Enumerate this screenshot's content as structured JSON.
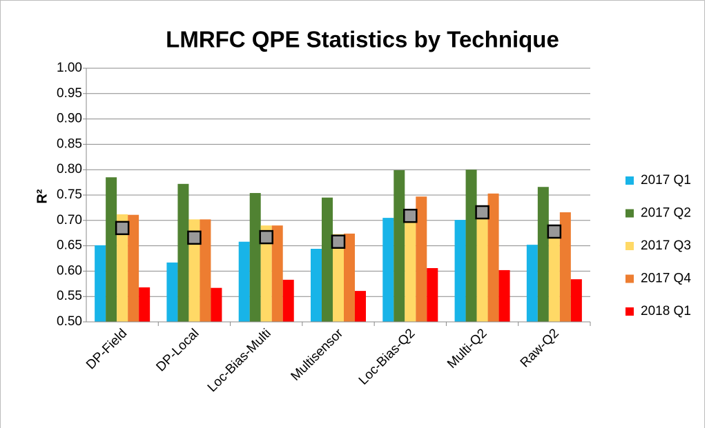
{
  "chart_data": {
    "type": "bar",
    "title": "LMRFC QPE Statistics by Technique",
    "y_label": "R²",
    "categories": [
      "DP-Field",
      "DP-Local",
      "Loc-Bias-Multi",
      "Multisensor",
      "Loc-Bias-Q2",
      "Multi-Q2",
      "Raw-Q2"
    ],
    "series": [
      {
        "name": "2017 Q1",
        "color": "#18b4e8",
        "values": [
          0.651,
          0.617,
          0.658,
          0.644,
          0.705,
          0.701,
          0.652
        ]
      },
      {
        "name": "2017 Q2",
        "color": "#508232",
        "values": [
          0.785,
          0.772,
          0.754,
          0.745,
          0.799,
          0.8,
          0.766
        ]
      },
      {
        "name": "2017 Q3",
        "color": "#ffd966",
        "values": [
          0.712,
          0.702,
          0.69,
          0.673,
          0.71,
          0.71,
          0.68
        ]
      },
      {
        "name": "2017 Q4",
        "color": "#ed7d31",
        "values": [
          0.711,
          0.702,
          0.69,
          0.674,
          0.747,
          0.753,
          0.716
        ]
      },
      {
        "name": "2018 Q1",
        "color": "#ff0000",
        "values": [
          0.568,
          0.567,
          0.583,
          0.561,
          0.606,
          0.602,
          0.584
        ]
      }
    ],
    "markers": {
      "color": "#999999",
      "values": [
        0.685,
        0.666,
        0.667,
        0.658,
        0.709,
        0.716,
        0.678
      ]
    },
    "ylim": [
      0.5,
      1.0
    ],
    "yticks": [
      {
        "value": 0.5,
        "label": "0.50"
      },
      {
        "value": 0.55,
        "label": "0.55"
      },
      {
        "value": 0.6,
        "label": "0.60"
      },
      {
        "value": 0.65,
        "label": "0.65"
      },
      {
        "value": 0.7,
        "label": "0.70"
      },
      {
        "value": 0.75,
        "label": "0.75"
      },
      {
        "value": 0.8,
        "label": "0.80"
      },
      {
        "value": 0.85,
        "label": "0.85"
      },
      {
        "value": 0.9,
        "label": "0.90"
      },
      {
        "value": 0.95,
        "label": "0.95"
      },
      {
        "value": 1.0,
        "label": "1.00"
      }
    ],
    "grid": true,
    "legend": "right"
  }
}
